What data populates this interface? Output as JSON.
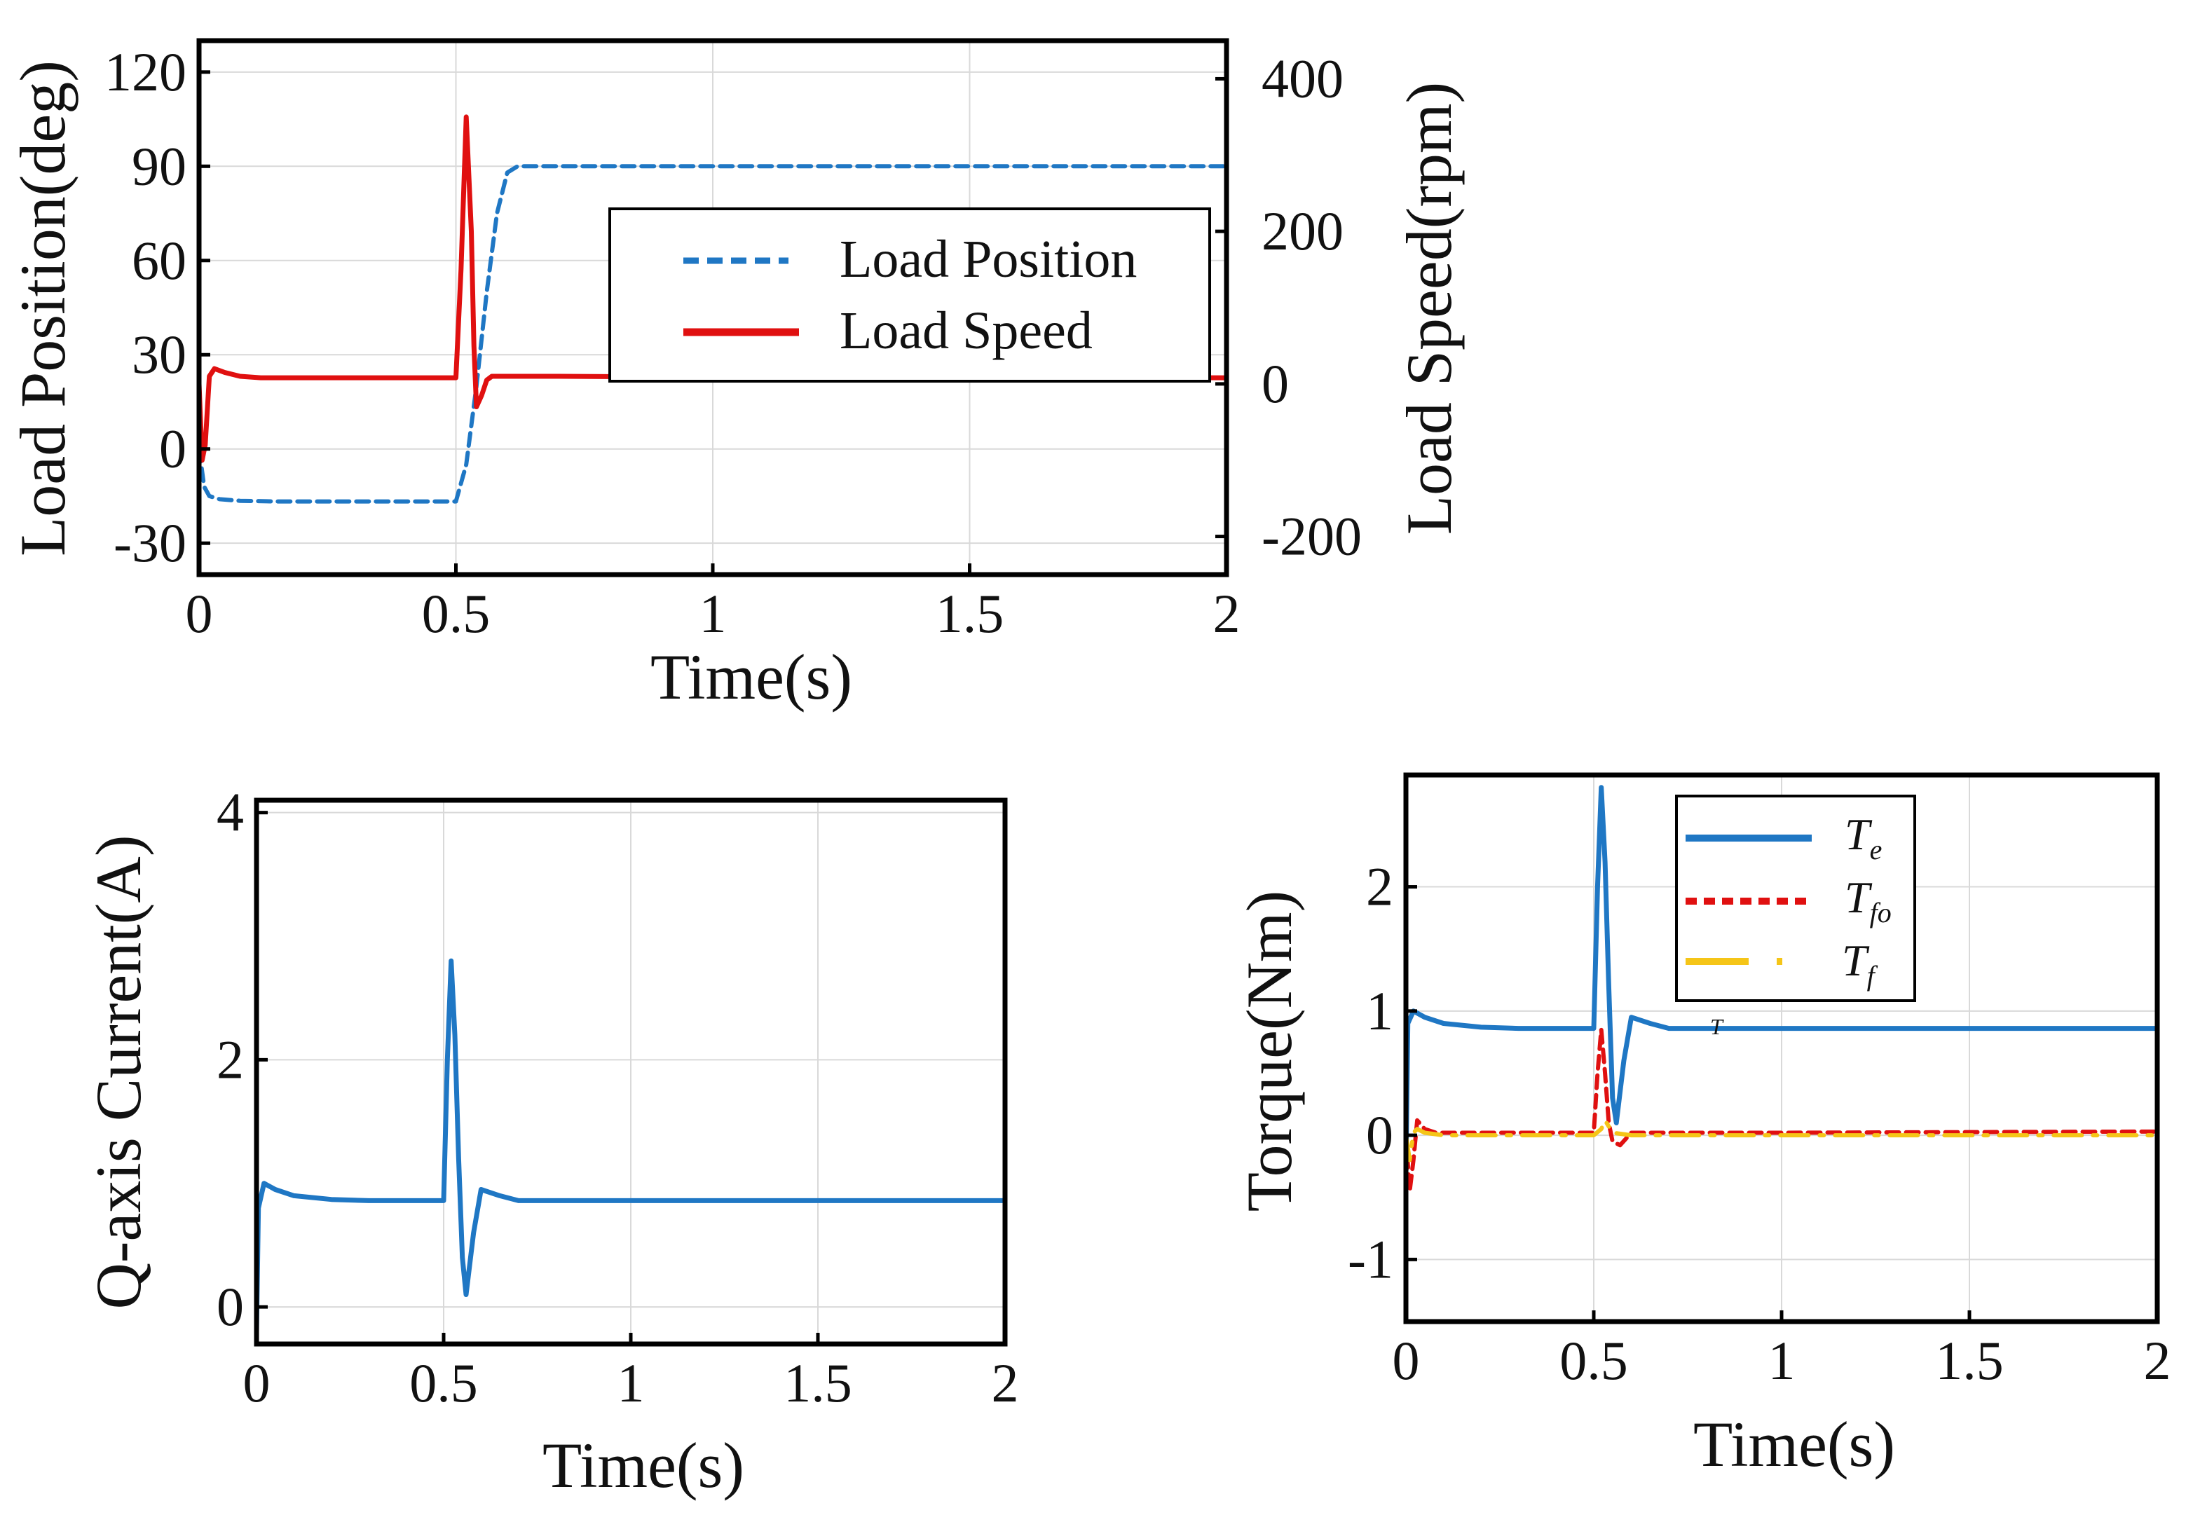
{
  "colors": {
    "blue": "#1f77c4",
    "red": "#e01010",
    "yellow": "#f5c518"
  },
  "chart_data": [
    {
      "id": "position-speed",
      "type": "line",
      "title": "",
      "xlabel": "Time(s)",
      "ylabel": "Load Position(deg)",
      "y2label": "Load Speed(rpm)",
      "xlim": [
        0,
        2
      ],
      "ylim": [
        -40,
        130
      ],
      "y2lim": [
        -250,
        450
      ],
      "xticks": [
        "0",
        "0.5",
        "1",
        "1.5",
        "2"
      ],
      "yticks": [
        "-30",
        "0",
        "30",
        "60",
        "90",
        "120"
      ],
      "y2ticks": [
        "-200",
        "0",
        "200",
        "400"
      ],
      "grid": true,
      "legend_position": "top-right",
      "series": [
        {
          "name": "Load Position",
          "axis": "left",
          "style": "dashed",
          "color": "#1f77c4",
          "x": [
            0,
            0.01,
            0.02,
            0.04,
            0.08,
            0.15,
            0.3,
            0.45,
            0.5,
            0.52,
            0.54,
            0.56,
            0.58,
            0.6,
            0.62,
            0.8,
            1.0,
            1.5,
            2.0
          ],
          "values": [
            0,
            -12,
            -15,
            -16,
            -16.5,
            -16.7,
            -16.7,
            -16.7,
            -16.7,
            -5,
            20,
            50,
            75,
            88,
            90,
            90,
            90,
            90,
            90
          ]
        },
        {
          "name": "Load Speed",
          "axis": "right",
          "style": "solid",
          "color": "#e01010",
          "x": [
            0,
            0.006,
            0.012,
            0.02,
            0.03,
            0.05,
            0.08,
            0.12,
            0.3,
            0.5,
            0.51,
            0.52,
            0.53,
            0.535,
            0.54,
            0.55,
            0.56,
            0.57,
            0.6,
            0.7,
            1.0,
            2.0
          ],
          "values": [
            0,
            -100,
            -80,
            10,
            20,
            15,
            10,
            8,
            8,
            8,
            150,
            350,
            200,
            50,
            -30,
            -15,
            5,
            10,
            10,
            10,
            9,
            8
          ]
        }
      ]
    },
    {
      "id": "q-current",
      "type": "line",
      "title": "",
      "xlabel": "Time(s)",
      "ylabel": "Q-axis Current(A)",
      "xlim": [
        0,
        2
      ],
      "ylim": [
        -0.3,
        4.1
      ],
      "xticks": [
        "0",
        "0.5",
        "1",
        "1.5",
        "2"
      ],
      "yticks": [
        "0",
        "2",
        "4"
      ],
      "grid": true,
      "series": [
        {
          "name": "Q-axis Current",
          "color": "#1f77c4",
          "x": [
            0,
            0.005,
            0.02,
            0.05,
            0.1,
            0.2,
            0.3,
            0.5,
            0.51,
            0.52,
            0.53,
            0.54,
            0.55,
            0.56,
            0.58,
            0.6,
            0.65,
            0.7,
            1.0,
            2.0
          ],
          "values": [
            -0.2,
            0.8,
            1.0,
            0.95,
            0.9,
            0.87,
            0.86,
            0.86,
            2.0,
            2.8,
            2.2,
            1.2,
            0.4,
            0.1,
            0.6,
            0.95,
            0.9,
            0.86,
            0.86,
            0.86
          ]
        }
      ]
    },
    {
      "id": "torque",
      "type": "line",
      "title": "",
      "xlabel": "Time(s)",
      "ylabel": "Torque(Nm)",
      "xlim": [
        0,
        2
      ],
      "ylim": [
        -1.5,
        2.9
      ],
      "xticks": [
        "0",
        "0.5",
        "1",
        "1.5",
        "2"
      ],
      "yticks": [
        "-1",
        "0",
        "1",
        "2"
      ],
      "grid": true,
      "legend_position": "top-center",
      "legend": [
        {
          "symbol": "T",
          "sub": "e",
          "style": "solid",
          "color": "#1f77c4"
        },
        {
          "symbol": "T",
          "sub": "fo",
          "style": "dashed",
          "color": "#e01010"
        },
        {
          "symbol": "T",
          "sub": "f",
          "style": "dashdot",
          "color": "#f5c518"
        }
      ],
      "annotation": "T",
      "series": [
        {
          "name": "Te",
          "color": "#1f77c4",
          "x": [
            0,
            0.005,
            0.02,
            0.05,
            0.1,
            0.2,
            0.3,
            0.5,
            0.51,
            0.52,
            0.53,
            0.54,
            0.55,
            0.56,
            0.58,
            0.6,
            0.65,
            0.7,
            1.0,
            2.0
          ],
          "values": [
            -0.3,
            0.9,
            1.0,
            0.95,
            0.9,
            0.87,
            0.86,
            0.86,
            2.0,
            2.8,
            2.2,
            1.2,
            0.3,
            0.1,
            0.6,
            0.95,
            0.9,
            0.86,
            0.86,
            0.86
          ]
        },
        {
          "name": "Tfo",
          "color": "#e01010",
          "x": [
            0,
            0.01,
            0.02,
            0.03,
            0.05,
            0.08,
            0.1,
            0.5,
            0.51,
            0.52,
            0.53,
            0.54,
            0.55,
            0.57,
            0.6,
            0.7,
            1.0,
            2.0
          ],
          "values": [
            0,
            -0.45,
            -0.2,
            0.12,
            0.05,
            0.02,
            0.02,
            0.02,
            0.5,
            0.85,
            0.5,
            0.1,
            -0.05,
            -0.08,
            0.02,
            0.02,
            0.02,
            0.03
          ]
        },
        {
          "name": "Tf",
          "color": "#f5c518",
          "x": [
            0,
            0.01,
            0.02,
            0.03,
            0.05,
            0.1,
            0.5,
            0.52,
            0.53,
            0.55,
            0.6,
            1.0,
            2.0
          ],
          "values": [
            0,
            -0.2,
            0.02,
            0.05,
            0.02,
            0.0,
            0.0,
            0.05,
            0.12,
            0.02,
            0.0,
            0.0,
            0.0
          ]
        }
      ]
    }
  ]
}
